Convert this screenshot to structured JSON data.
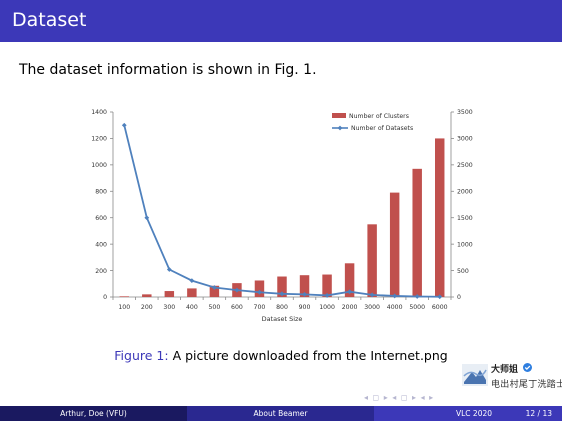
{
  "slide": {
    "title": "Dataset",
    "intro": "The dataset information is shown in Fig. 1.",
    "caption_label": "Figure 1:",
    "caption_text": " A picture downloaded from the Internet.png"
  },
  "watermark": {
    "line1": "大师姐",
    "line2": "电出村尾丁洗踏士"
  },
  "nav_symbols": "◂ ◻ ▸ ◂ ◻ ▸ ◂ ▸",
  "footer": {
    "author": "Arthur, Doe (VFU)",
    "title": "About Beamer",
    "date": "VLC 2020",
    "page": "12 / 13"
  },
  "colors": {
    "header": "#3c38b8",
    "bar": "#c0504d",
    "line": "#4f81bd",
    "footer_left": "#1a1960",
    "footer_mid": "#2a2890",
    "footer_right": "#3c38b8"
  },
  "chart_data": {
    "type": "bar+line",
    "categories": [
      "100",
      "200",
      "300",
      "400",
      "500",
      "600",
      "700",
      "800",
      "900",
      "1000",
      "2000",
      "3000",
      "4000",
      "5000",
      "6000"
    ],
    "xlabel": "Dataset Size",
    "ylabel": "",
    "ylim_left": [
      0,
      1400
    ],
    "yticks_left": [
      0,
      200,
      400,
      600,
      800,
      1000,
      1200,
      1400
    ],
    "ylim_right": [
      0,
      3500
    ],
    "yticks_right": [
      0,
      500,
      1000,
      1500,
      2000,
      2500,
      3000,
      3500
    ],
    "legend_position": "top-right",
    "grid": false,
    "series": [
      {
        "name": "Number of Clusters",
        "kind": "bar",
        "axis": "left",
        "values": [
          5,
          20,
          45,
          65,
          85,
          105,
          125,
          155,
          165,
          170,
          255,
          550,
          790,
          970,
          1200
        ]
      },
      {
        "name": "Number of Datasets",
        "kind": "line",
        "axis": "right",
        "values": [
          3250,
          1500,
          520,
          310,
          180,
          130,
          90,
          60,
          50,
          30,
          100,
          40,
          20,
          10,
          5
        ]
      }
    ]
  }
}
